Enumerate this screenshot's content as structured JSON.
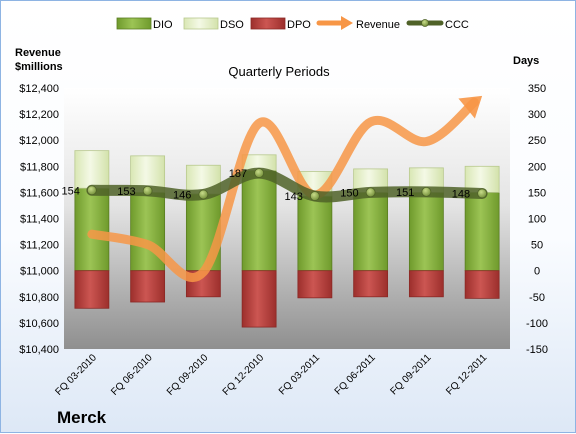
{
  "chart_data": {
    "type": "bar",
    "title": "Quarterly Periods",
    "company": "Merck",
    "y_left_label": [
      "Revenue",
      "$millions"
    ],
    "y_right_label": "Days",
    "categories": [
      "FQ 03-2010",
      "FQ 06-2010",
      "FQ 09-2010",
      "FQ 12-2010",
      "FQ 03-2011",
      "FQ 06-2011",
      "FQ 09-2011",
      "FQ 12-2011"
    ],
    "series": [
      {
        "name": "DIO",
        "type": "bar",
        "axis": "right",
        "color": "#8cb543",
        "values": [
          158,
          150,
          147,
          192,
          143,
          150,
          150,
          150
        ]
      },
      {
        "name": "DSO",
        "type": "bar",
        "axis": "right",
        "color": "#e6f0c8",
        "values": [
          72,
          70,
          55,
          30,
          47,
          45,
          47,
          50
        ]
      },
      {
        "name": "DPO",
        "type": "bar",
        "axis": "right",
        "color": "#c0504d",
        "values": [
          -72,
          -60,
          -50,
          -108,
          -52,
          -50,
          -50,
          -53
        ]
      },
      {
        "name": "Revenue",
        "type": "line",
        "axis": "left",
        "color": "#f79646",
        "values": [
          11280,
          11200,
          10990,
          12130,
          11580,
          12140,
          11990,
          12340
        ]
      },
      {
        "name": "CCC",
        "type": "line",
        "axis": "left_days",
        "color": "#4f6228",
        "values": [
          154,
          153,
          146,
          187,
          143,
          150,
          151,
          148
        ],
        "labels": [
          "154",
          "153",
          "146",
          "187",
          "143",
          "150",
          "151",
          "148"
        ]
      }
    ],
    "y_left": {
      "min": 10400,
      "max": 12400,
      "step": 200,
      "ticks": [
        "$10,400",
        "$10,600",
        "$10,800",
        "$11,000",
        "$11,200",
        "$11,400",
        "$11,600",
        "$11,800",
        "$12,000",
        "$12,200",
        "$12,400"
      ]
    },
    "y_right": {
      "min": -150,
      "max": 350,
      "step": 50,
      "ticks": [
        "-150",
        "-100",
        "-50",
        "0",
        "50",
        "100",
        "150",
        "200",
        "250",
        "300",
        "350"
      ]
    },
    "legend_position": "top",
    "grid": false
  }
}
